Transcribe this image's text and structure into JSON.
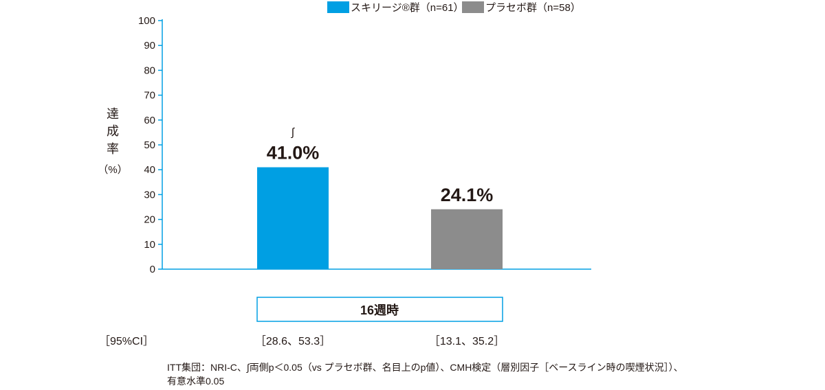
{
  "chart_data": {
    "type": "bar",
    "title": "",
    "xlabel": "",
    "ylabel": "達成率（%）",
    "ylabel_chars": [
      "達",
      "成",
      "率"
    ],
    "ylabel_unit": "（%）",
    "ylim": [
      0,
      100
    ],
    "yticks": [
      0,
      10,
      20,
      30,
      40,
      50,
      60,
      70,
      80,
      90,
      100
    ],
    "grid": false,
    "legend_position": "top-right",
    "category": "16週時",
    "series": [
      {
        "name": "スキリージ®群（n=61）",
        "value": 41.0,
        "label": "41.0%",
        "marker": "∫",
        "ci": "［28.6、53.3］",
        "color": "#009fe3"
      },
      {
        "name": "プラセボ群（n=58）",
        "value": 24.1,
        "label": "24.1%",
        "marker": "",
        "ci": "［13.1、35.2］",
        "color": "#8c8c8c"
      }
    ],
    "ci_header": "［95%CI］",
    "axis_color": "#009fe3"
  },
  "footnote": {
    "line1": "ITT集団：NRI-C、∫両側p＜0.05（vs プラセボ群、名目上のp値）、CMH検定（層別因子［ベースライン時の喫煙状況］）、",
    "line2": "有意水準0.05"
  }
}
